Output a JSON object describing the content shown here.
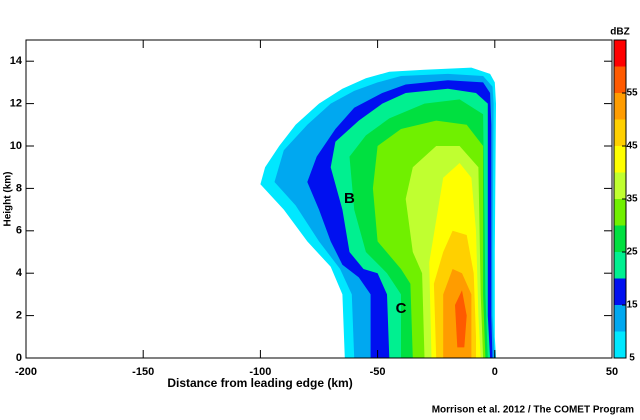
{
  "chart_data": {
    "type": "contour",
    "xlabel": "Distance from leading edge (km)",
    "ylabel": "Height (km)",
    "xlim": [
      -200,
      50
    ],
    "xticks": [
      -200,
      -150,
      -100,
      -50,
      0,
      50
    ],
    "ylim": [
      0,
      15
    ],
    "yticks": [
      0,
      2,
      4,
      6,
      8,
      10,
      12,
      14
    ],
    "colorbar_label": "dBZ",
    "clim": [
      5,
      65
    ],
    "levels": [
      5,
      10,
      15,
      20,
      25,
      30,
      35,
      40,
      45,
      50,
      55,
      60
    ],
    "colors": [
      "#00e8ff",
      "#00a8f0",
      "#0010f0",
      "#00f090",
      "#00e040",
      "#70f000",
      "#c0ff30",
      "#ffff00",
      "#ffd000",
      "#ff9c00",
      "#ff5a00",
      "#ff0000"
    ],
    "colorbar_ticks": [
      5,
      15,
      25,
      35,
      45,
      55
    ],
    "annotations": [
      "B",
      "C"
    ],
    "source": "Morrison et al. 2012 / The COMET Program"
  }
}
